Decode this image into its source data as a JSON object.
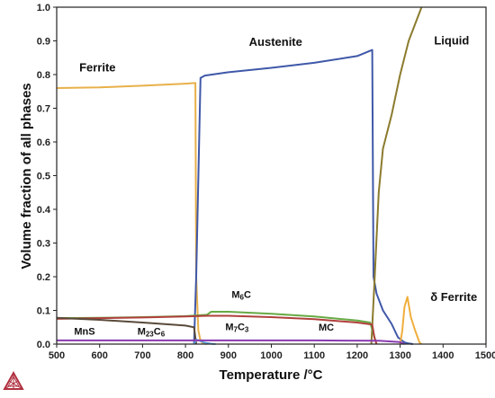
{
  "chart_data": {
    "type": "line",
    "xlabel": "Temperature /°C",
    "ylabel": "Volume fraction of all phases",
    "xlim": [
      500,
      1500
    ],
    "ylim": [
      0,
      1.0
    ],
    "xticks": [
      500,
      600,
      700,
      800,
      900,
      1000,
      1100,
      1200,
      1300,
      1400,
      1500
    ],
    "yticks": [
      0.0,
      0.1,
      0.2,
      0.3,
      0.4,
      0.5,
      0.6,
      0.7,
      0.8,
      0.9,
      1.0
    ],
    "grid": false,
    "series": [
      {
        "name": "Ferrite",
        "color": "#e8b04a",
        "x": [
          500,
          600,
          700,
          800,
          823,
          825,
          830,
          835,
          840,
          850
        ],
        "y": [
          0.76,
          0.762,
          0.767,
          0.773,
          0.775,
          0.2,
          0.04,
          0.01,
          0.003,
          0.0
        ]
      },
      {
        "name": "Austenite",
        "color": "#3f58a8",
        "x": [
          820,
          825,
          835,
          845,
          900,
          1000,
          1100,
          1200,
          1235,
          1238,
          1245,
          1260,
          1280,
          1295,
          1310,
          1320,
          1330
        ],
        "y": [
          0.0,
          0.2,
          0.79,
          0.797,
          0.807,
          0.82,
          0.835,
          0.855,
          0.873,
          0.2,
          0.15,
          0.1,
          0.06,
          0.02,
          0.005,
          0.002,
          0.0
        ]
      },
      {
        "name": "Liquid",
        "color": "#8b7b2e",
        "x": [
          1233,
          1240,
          1250,
          1260,
          1280,
          1300,
          1320,
          1350
        ],
        "y": [
          0.0,
          0.18,
          0.45,
          0.58,
          0.68,
          0.8,
          0.9,
          1.0
        ]
      },
      {
        "name": "δ Ferrite",
        "color": "#f0ae3c",
        "x": [
          1300,
          1305,
          1310,
          1317,
          1325,
          1335,
          1345,
          1350
        ],
        "y": [
          0.0,
          0.04,
          0.11,
          0.14,
          0.08,
          0.04,
          0.005,
          0.0
        ]
      },
      {
        "name": "M6C",
        "color": "#66aa44",
        "x": [
          500,
          600,
          700,
          800,
          850,
          860,
          900,
          1000,
          1100,
          1200,
          1230,
          1238,
          1245
        ],
        "y": [
          0.077,
          0.078,
          0.08,
          0.083,
          0.087,
          0.096,
          0.096,
          0.09,
          0.082,
          0.07,
          0.064,
          0.03,
          0.0
        ]
      },
      {
        "name": "MC",
        "color": "#b0403c",
        "x": [
          500,
          600,
          700,
          800,
          850,
          900,
          1000,
          1100,
          1200,
          1235,
          1240,
          1245
        ],
        "y": [
          0.075,
          0.077,
          0.079,
          0.082,
          0.084,
          0.084,
          0.08,
          0.074,
          0.064,
          0.058,
          0.02,
          0.0
        ]
      },
      {
        "name": "M23C6",
        "color": "#5a4a3a",
        "x": [
          500,
          600,
          700,
          800,
          820,
          825
        ],
        "y": [
          0.078,
          0.072,
          0.064,
          0.055,
          0.05,
          0.0
        ]
      },
      {
        "name": "M7C3",
        "color": "#5fa0d8",
        "x": [
          820,
          825,
          835,
          845,
          860,
          870
        ],
        "y": [
          0.0,
          0.013,
          0.009,
          0.004,
          0.001,
          0.0
        ]
      },
      {
        "name": "MnS",
        "color": "#8a3ab0",
        "x": [
          500,
          700,
          900,
          1100,
          1250,
          1300,
          1310
        ],
        "y": [
          0.011,
          0.011,
          0.011,
          0.011,
          0.01,
          0.006,
          0.0
        ]
      }
    ],
    "annotations": [
      {
        "text": "Austenite",
        "x": 1010,
        "y": 0.885,
        "size": "big"
      },
      {
        "text": "Ferrite",
        "x": 595,
        "y": 0.81,
        "size": "big"
      },
      {
        "text": "Liquid",
        "x": 1420,
        "y": 0.89,
        "size": "big"
      },
      {
        "text": "δ Ferrite",
        "x": 1425,
        "y": 0.128,
        "size": "big"
      },
      {
        "text": "M6C",
        "x": 930,
        "y": 0.137,
        "size": "small"
      },
      {
        "text": "M7C3",
        "x": 920,
        "y": 0.042,
        "size": "small"
      },
      {
        "text": "MC",
        "x": 1128,
        "y": 0.04,
        "size": "small"
      },
      {
        "text": "MnS",
        "x": 565,
        "y": 0.028,
        "size": "small"
      },
      {
        "text": "M23C6",
        "x": 720,
        "y": 0.028,
        "size": "small"
      }
    ]
  }
}
